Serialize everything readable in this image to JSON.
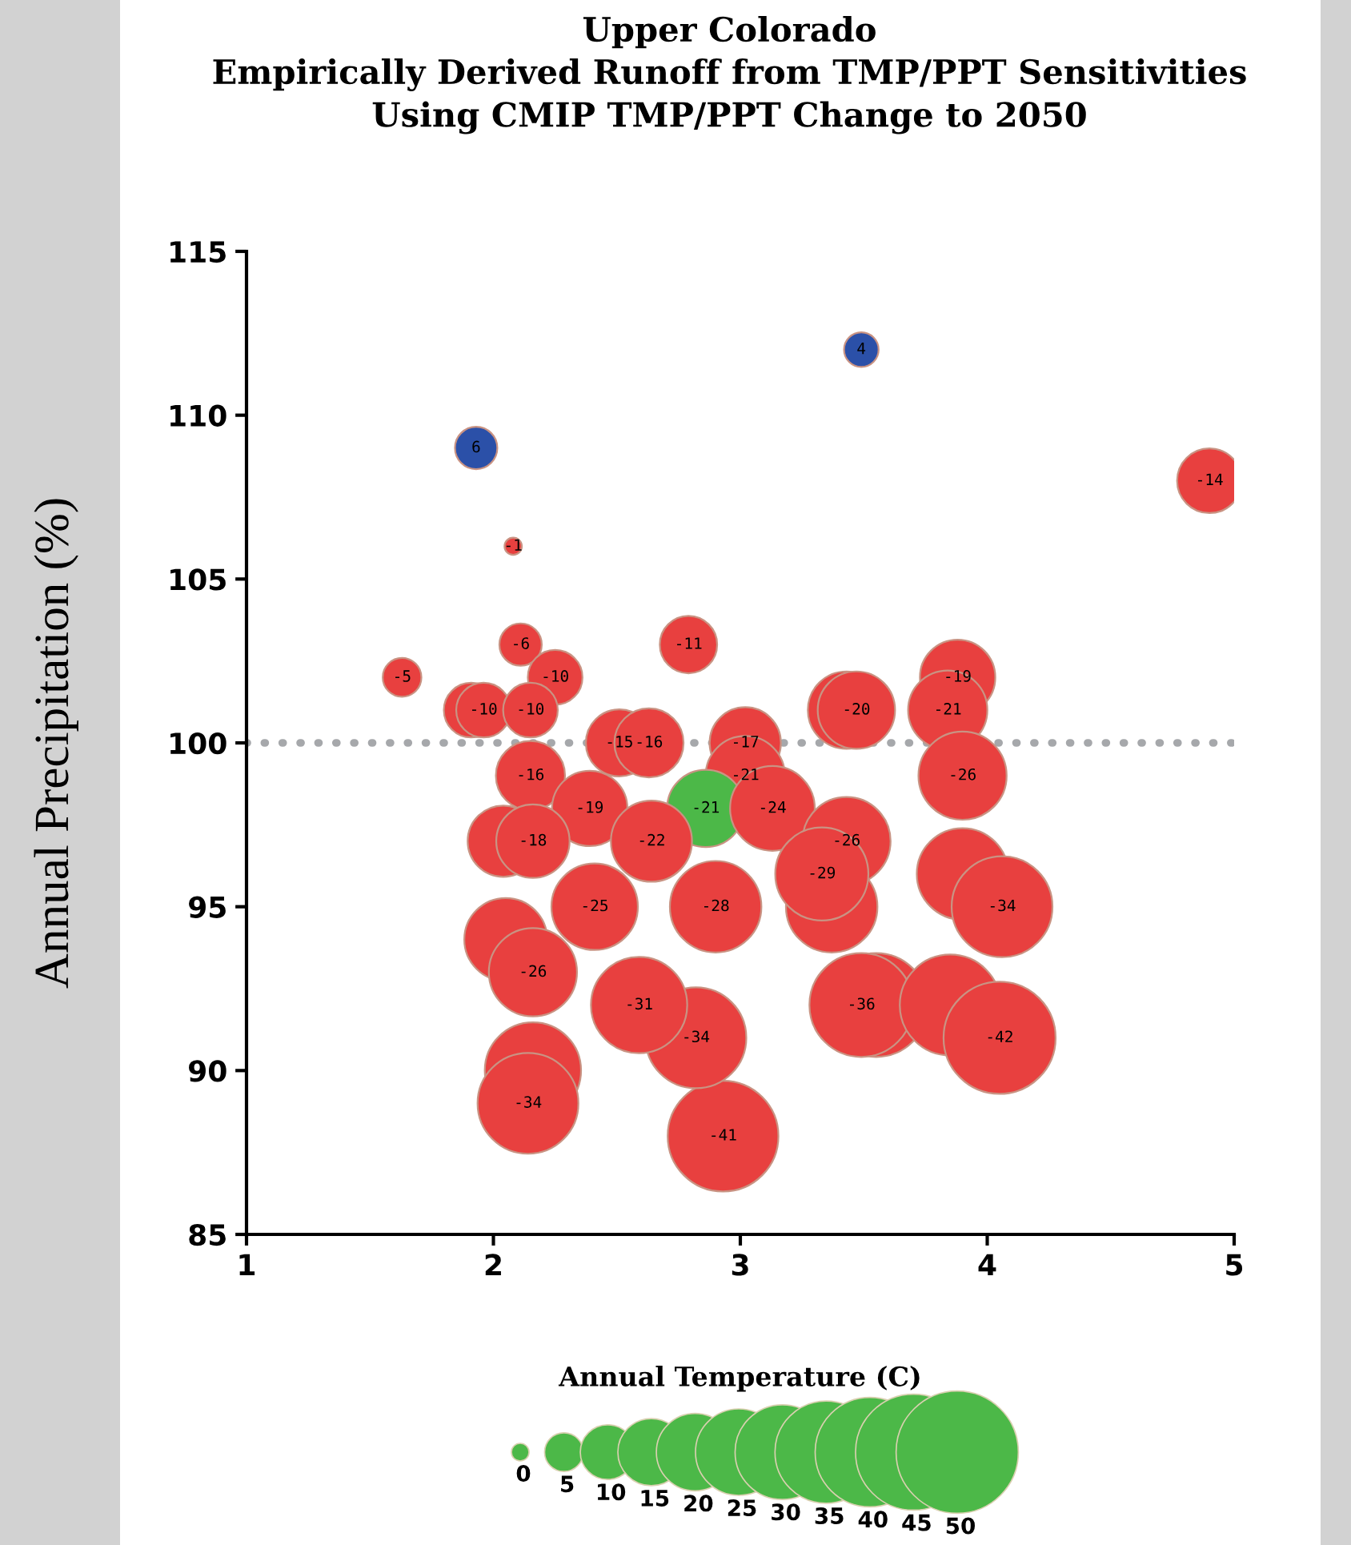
{
  "chart_data": {
    "type": "bubble",
    "title": "Upper Colorado\nEmpirically Derived Runoff from TMP/PPT Sensitivities\nUsing CMIP TMP/PPT Change to 2050",
    "xlabel": "Annual Temperature (C)",
    "ylabel": "Annual Precipitation (%)",
    "x": [
      1.93,
      2.08,
      2.11,
      2.79,
      1.63,
      2.25,
      1.91,
      1.96,
      2.15,
      2.51,
      2.63,
      3.02,
      2.15,
      3.02,
      2.39,
      2.86,
      3.13,
      2.04,
      2.16,
      2.64,
      3.49,
      4.9,
      3.43,
      3.47,
      3.88,
      3.84,
      3.9,
      3.43,
      3.37,
      3.33,
      3.9,
      4.06,
      2.9,
      3.55,
      3.49,
      3.85,
      4.05,
      2.93,
      2.82,
      2.41,
      2.05,
      2.16,
      2.59,
      2.16,
      2.14
    ],
    "values": [
      109,
      106,
      103,
      103,
      102,
      102,
      101,
      101,
      101,
      100,
      100,
      100,
      99,
      99,
      98,
      98,
      98,
      97,
      97,
      97,
      112,
      108,
      101,
      101,
      102,
      101,
      99,
      97,
      95,
      96,
      96,
      95,
      95,
      92,
      92,
      92,
      91,
      88,
      91,
      95,
      94,
      93,
      92,
      90,
      89
    ],
    "sizes": [
      6,
      1,
      6,
      11,
      5,
      10,
      10,
      10,
      10,
      15,
      16,
      17,
      16,
      21,
      19,
      20,
      24,
      17,
      18,
      22,
      4,
      14,
      20,
      20,
      19,
      21,
      26,
      26,
      28,
      29,
      28,
      34,
      28,
      36,
      36,
      34,
      42,
      41,
      34,
      25,
      23,
      26,
      31,
      31,
      34
    ],
    "colors": [
      "#2b50a8",
      "#e8403f",
      "#e8403f",
      "#e8403f",
      "#e8403f",
      "#e8403f",
      "#e8403f",
      "#e8403f",
      "#e8403f",
      "#e8403f",
      "#e8403f",
      "#e8403f",
      "#e8403f",
      "#e8403f",
      "#e8403f",
      "#4cb848",
      "#e8403f",
      "#e8403f",
      "#e8403f",
      "#e8403f",
      "#2b50a8",
      "#e8403f",
      "#e8403f",
      "#e8403f",
      "#e8403f",
      "#e8403f",
      "#e8403f",
      "#e8403f",
      "#e8403f",
      "#e8403f",
      "#e8403f",
      "#e8403f",
      "#e8403f",
      "#e8403f",
      "#e8403f",
      "#e8403f",
      "#e8403f",
      "#e8403f",
      "#e8403f",
      "#e8403f",
      "#e8403f",
      "#e8403f",
      "#e8403f",
      "#e8403f",
      "#e8403f"
    ],
    "annotations": [
      {
        "text": "6",
        "x": 1.93,
        "y": 109
      },
      {
        "text": "-1",
        "x": 2.08,
        "y": 106
      },
      {
        "text": "-6",
        "x": 2.11,
        "y": 103
      },
      {
        "text": "-11",
        "x": 2.79,
        "y": 103
      },
      {
        "text": "-5",
        "x": 1.63,
        "y": 102
      },
      {
        "text": "-10",
        "x": 2.25,
        "y": 102
      },
      {
        "text": "-10",
        "x": 1.96,
        "y": 101
      },
      {
        "text": "-10",
        "x": 2.15,
        "y": 101
      },
      {
        "text": "-15",
        "x": 2.51,
        "y": 100
      },
      {
        "text": "-16",
        "x": 2.63,
        "y": 100
      },
      {
        "text": "-17",
        "x": 3.02,
        "y": 100
      },
      {
        "text": "-16",
        "x": 2.15,
        "y": 99
      },
      {
        "text": "-21",
        "x": 3.02,
        "y": 99
      },
      {
        "text": "-19",
        "x": 2.39,
        "y": 98
      },
      {
        "text": "-21",
        "x": 2.86,
        "y": 98
      },
      {
        "text": "-24",
        "x": 3.13,
        "y": 98
      },
      {
        "text": "-18",
        "x": 2.16,
        "y": 97
      },
      {
        "text": "-22",
        "x": 2.64,
        "y": 97
      },
      {
        "text": "4",
        "x": 3.49,
        "y": 112
      },
      {
        "text": "-14",
        "x": 4.9,
        "y": 108
      },
      {
        "text": "-20",
        "x": 3.47,
        "y": 101
      },
      {
        "text": "-19",
        "x": 3.88,
        "y": 102
      },
      {
        "text": "-21",
        "x": 3.84,
        "y": 101
      },
      {
        "text": "-26",
        "x": 3.9,
        "y": 99
      },
      {
        "text": "-26",
        "x": 3.43,
        "y": 97
      },
      {
        "text": "-29",
        "x": 3.33,
        "y": 96
      },
      {
        "text": "-34",
        "x": 4.06,
        "y": 95
      },
      {
        "text": "-28",
        "x": 2.9,
        "y": 95
      },
      {
        "text": "-36",
        "x": 3.49,
        "y": 92
      },
      {
        "text": "-42",
        "x": 4.05,
        "y": 91
      },
      {
        "text": "-41",
        "x": 2.93,
        "y": 88
      },
      {
        "text": "-34",
        "x": 2.82,
        "y": 91
      },
      {
        "text": "-25",
        "x": 2.41,
        "y": 95
      },
      {
        "text": "-26",
        "x": 2.16,
        "y": 93
      },
      {
        "text": "-31",
        "x": 2.59,
        "y": 92
      },
      {
        "text": "-34",
        "x": 2.14,
        "y": 89
      },
      "0"
    ],
    "size_legend": [
      5,
      10,
      15,
      20,
      25,
      30,
      35,
      40,
      45,
      50
    ],
    "xlim": [
      1,
      5
    ],
    "xticks": [
      1,
      2,
      3,
      4,
      5
    ],
    "ylim": [
      85,
      115
    ],
    "yticks": [
      85,
      90,
      95,
      100,
      105,
      110,
      115
    ],
    "ref_lines": [
      {
        "axis": "y",
        "value": 100,
        "color": "#a6a8ab",
        "line_style": "dotted"
      }
    ],
    "grid": false,
    "legend": false
  }
}
